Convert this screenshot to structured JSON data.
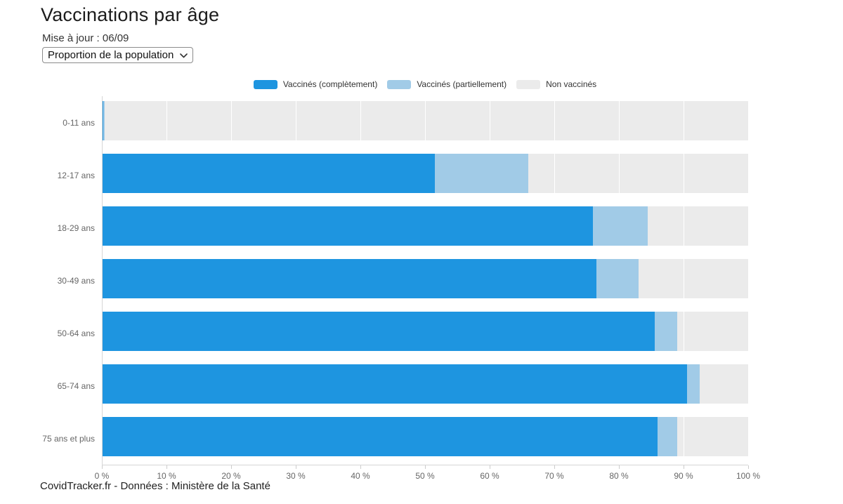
{
  "page": {
    "title": "Vaccinations par âge",
    "updated": "Mise à jour : 06/09",
    "footer": "CovidTracker.fr - Données : Ministère de la Santé"
  },
  "controls": {
    "metric_select": {
      "value": "Proportion de la population",
      "options": [
        "Proportion de la population"
      ]
    },
    "chevron_icon": "chevron-down"
  },
  "colors": {
    "complete": "#1e95e0",
    "partial": "#a1cbe7",
    "none": "#ebebeb",
    "grid": "#e6e6e6",
    "axis": "#d6d6d6",
    "tick_text": "#666666"
  },
  "chart_data": {
    "type": "bar",
    "orientation": "horizontal",
    "stacked": true,
    "title": "Vaccinations par âge",
    "categories": [
      "0-11 ans",
      "12-17 ans",
      "18-29 ans",
      "30-49 ans",
      "50-64 ans",
      "65-74 ans",
      "75 ans et plus"
    ],
    "series": [
      {
        "name": "Vaccinés (complètement)",
        "color": "#1e95e0",
        "values": [
          0.2,
          51.5,
          76.0,
          76.5,
          85.5,
          90.5,
          86.0
        ]
      },
      {
        "name": "Vaccinés (partiellement)",
        "color": "#a1cbe7",
        "values": [
          0.2,
          14.5,
          8.5,
          6.5,
          3.5,
          2.0,
          3.0
        ]
      },
      {
        "name": "Non vaccinés",
        "color": "#ebebeb",
        "values": [
          99.6,
          34.0,
          15.5,
          17.0,
          11.0,
          7.5,
          11.0
        ]
      }
    ],
    "xlim": [
      0,
      100
    ],
    "x_ticks": [
      0,
      10,
      20,
      30,
      40,
      50,
      60,
      70,
      80,
      90,
      100
    ],
    "x_tick_labels": [
      "0 %",
      "10 %",
      "20 %",
      "30 %",
      "40 %",
      "50 %",
      "60 %",
      "70 %",
      "80 %",
      "90 %",
      "100 %"
    ],
    "grid": true,
    "legend_position": "top"
  }
}
